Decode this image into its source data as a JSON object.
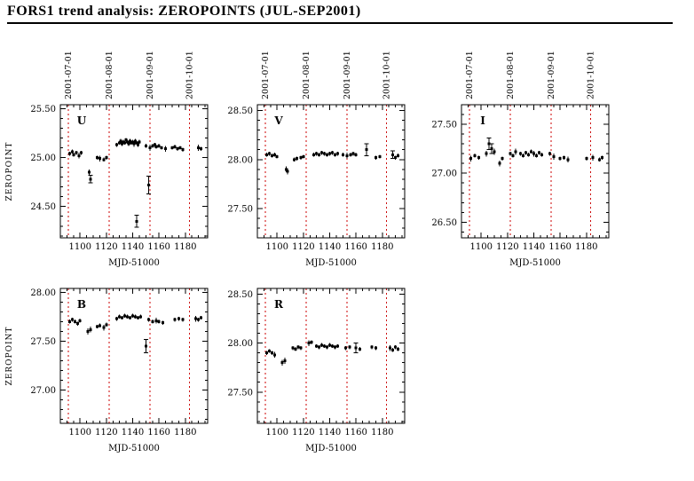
{
  "chart_data": {
    "type": "scatter",
    "title": "FORS1 trend analysis: ZEROPOINTS (JUL-SEP2001)",
    "xlabel": "MJD-51000",
    "ylabel": "ZEROPOINT",
    "xlim": [
      1085,
      1197
    ],
    "x_major_ticks": [
      1100,
      1120,
      1140,
      1160,
      1180
    ],
    "annotation_color": "#cc0000",
    "marker_color": "#000000",
    "vlines": {
      "x": [
        1091,
        1122,
        1153,
        1183
      ],
      "labels": [
        "2001-07-01",
        "2001-08-01",
        "2001-09-01",
        "2001-10-01"
      ],
      "style": "dashed",
      "color": "#cc0000"
    },
    "panels": [
      {
        "filter": "U",
        "row": 0,
        "ylim": [
          24.18,
          25.54
        ],
        "yticks": [
          24.5,
          25.0,
          25.5
        ],
        "points": [
          [
            1092,
            25.04,
            0.02
          ],
          [
            1094,
            25.06,
            0.02
          ],
          [
            1095,
            25.03,
            0.02
          ],
          [
            1097,
            25.05,
            0.02
          ],
          [
            1099,
            25.02,
            0.03
          ],
          [
            1101,
            25.05,
            0.02
          ],
          [
            1107,
            24.85,
            0.03
          ],
          [
            1108,
            24.78,
            0.04
          ],
          [
            1113,
            25.0,
            0.02
          ],
          [
            1115,
            24.99,
            0.03
          ],
          [
            1118,
            24.98,
            0.02
          ],
          [
            1120,
            25.0,
            0.02
          ],
          [
            1128,
            25.13,
            0.02
          ],
          [
            1130,
            25.15,
            0.02
          ],
          [
            1131,
            25.17,
            0.02
          ],
          [
            1132,
            25.14,
            0.02
          ],
          [
            1133,
            25.16,
            0.02
          ],
          [
            1134,
            25.15,
            0.02
          ],
          [
            1135,
            25.18,
            0.02
          ],
          [
            1136,
            25.16,
            0.02
          ],
          [
            1137,
            25.14,
            0.02
          ],
          [
            1138,
            25.17,
            0.02
          ],
          [
            1139,
            25.15,
            0.02
          ],
          [
            1140,
            25.16,
            0.02
          ],
          [
            1141,
            25.14,
            0.03
          ],
          [
            1142,
            25.17,
            0.02
          ],
          [
            1143,
            25.15,
            0.02
          ],
          [
            1144,
            25.13,
            0.02
          ],
          [
            1145,
            25.16,
            0.02
          ],
          [
            1143,
            24.35,
            0.06
          ],
          [
            1152,
            24.72,
            0.09
          ],
          [
            1150,
            25.12,
            0.02
          ],
          [
            1153,
            25.1,
            0.03
          ],
          [
            1155,
            25.12,
            0.02
          ],
          [
            1157,
            25.13,
            0.02
          ],
          [
            1158,
            25.11,
            0.02
          ],
          [
            1160,
            25.12,
            0.02
          ],
          [
            1162,
            25.1,
            0.02
          ],
          [
            1165,
            25.09,
            0.03
          ],
          [
            1170,
            25.1,
            0.02
          ],
          [
            1172,
            25.11,
            0.02
          ],
          [
            1174,
            25.09,
            0.02
          ],
          [
            1176,
            25.1,
            0.02
          ],
          [
            1178,
            25.08,
            0.02
          ],
          [
            1190,
            25.1,
            0.03
          ],
          [
            1192,
            25.09,
            0.02
          ]
        ]
      },
      {
        "filter": "V",
        "row": 0,
        "ylim": [
          27.2,
          28.56
        ],
        "yticks": [
          27.5,
          28.0,
          28.5
        ],
        "points": [
          [
            1092,
            28.05,
            0.02
          ],
          [
            1094,
            28.06,
            0.02
          ],
          [
            1096,
            28.04,
            0.02
          ],
          [
            1098,
            28.05,
            0.02
          ],
          [
            1100,
            28.03,
            0.02
          ],
          [
            1107,
            27.9,
            0.03
          ],
          [
            1108,
            27.88,
            0.03
          ],
          [
            1113,
            28.0,
            0.02
          ],
          [
            1115,
            28.01,
            0.02
          ],
          [
            1118,
            28.02,
            0.02
          ],
          [
            1120,
            28.03,
            0.02
          ],
          [
            1128,
            28.05,
            0.02
          ],
          [
            1130,
            28.06,
            0.02
          ],
          [
            1132,
            28.05,
            0.02
          ],
          [
            1134,
            28.07,
            0.02
          ],
          [
            1136,
            28.06,
            0.02
          ],
          [
            1138,
            28.05,
            0.02
          ],
          [
            1140,
            28.06,
            0.02
          ],
          [
            1142,
            28.07,
            0.02
          ],
          [
            1144,
            28.05,
            0.02
          ],
          [
            1146,
            28.06,
            0.02
          ],
          [
            1150,
            28.05,
            0.02
          ],
          [
            1153,
            28.04,
            0.03
          ],
          [
            1156,
            28.05,
            0.02
          ],
          [
            1158,
            28.06,
            0.02
          ],
          [
            1160,
            28.05,
            0.02
          ],
          [
            1168,
            28.1,
            0.06
          ],
          [
            1175,
            28.02,
            0.02
          ],
          [
            1178,
            28.03,
            0.02
          ],
          [
            1188,
            28.05,
            0.04
          ],
          [
            1190,
            28.02,
            0.02
          ],
          [
            1192,
            28.04,
            0.02
          ]
        ]
      },
      {
        "filter": "I",
        "row": 0,
        "ylim": [
          26.34,
          27.7
        ],
        "yticks": [
          26.5,
          27.0,
          27.5
        ],
        "points": [
          [
            1092,
            27.15,
            0.03
          ],
          [
            1095,
            27.18,
            0.02
          ],
          [
            1098,
            27.16,
            0.02
          ],
          [
            1104,
            27.2,
            0.03
          ],
          [
            1106,
            27.3,
            0.06
          ],
          [
            1108,
            27.25,
            0.05
          ],
          [
            1110,
            27.22,
            0.03
          ],
          [
            1114,
            27.1,
            0.03
          ],
          [
            1116,
            27.15,
            0.02
          ],
          [
            1122,
            27.2,
            0.02
          ],
          [
            1124,
            27.18,
            0.02
          ],
          [
            1126,
            27.22,
            0.03
          ],
          [
            1130,
            27.2,
            0.02
          ],
          [
            1132,
            27.18,
            0.02
          ],
          [
            1134,
            27.21,
            0.02
          ],
          [
            1136,
            27.19,
            0.02
          ],
          [
            1138,
            27.22,
            0.02
          ],
          [
            1140,
            27.2,
            0.03
          ],
          [
            1142,
            27.18,
            0.02
          ],
          [
            1144,
            27.21,
            0.02
          ],
          [
            1146,
            27.19,
            0.02
          ],
          [
            1152,
            27.2,
            0.02
          ],
          [
            1155,
            27.17,
            0.03
          ],
          [
            1160,
            27.15,
            0.02
          ],
          [
            1163,
            27.16,
            0.02
          ],
          [
            1166,
            27.14,
            0.03
          ],
          [
            1180,
            27.15,
            0.02
          ],
          [
            1185,
            27.16,
            0.03
          ],
          [
            1190,
            27.14,
            0.02
          ],
          [
            1192,
            27.16,
            0.02
          ]
        ]
      },
      {
        "filter": "B",
        "row": 1,
        "ylim": [
          26.66,
          28.04
        ],
        "yticks": [
          27.0,
          27.5,
          28.0
        ],
        "points": [
          [
            1092,
            27.7,
            0.02
          ],
          [
            1094,
            27.72,
            0.02
          ],
          [
            1096,
            27.7,
            0.02
          ],
          [
            1098,
            27.68,
            0.02
          ],
          [
            1100,
            27.71,
            0.02
          ],
          [
            1106,
            27.6,
            0.03
          ],
          [
            1108,
            27.62,
            0.03
          ],
          [
            1113,
            27.65,
            0.02
          ],
          [
            1115,
            27.66,
            0.02
          ],
          [
            1118,
            27.64,
            0.03
          ],
          [
            1120,
            27.67,
            0.02
          ],
          [
            1128,
            27.73,
            0.02
          ],
          [
            1130,
            27.75,
            0.02
          ],
          [
            1132,
            27.74,
            0.02
          ],
          [
            1134,
            27.76,
            0.02
          ],
          [
            1136,
            27.75,
            0.02
          ],
          [
            1138,
            27.74,
            0.02
          ],
          [
            1140,
            27.76,
            0.02
          ],
          [
            1142,
            27.75,
            0.02
          ],
          [
            1144,
            27.74,
            0.02
          ],
          [
            1146,
            27.75,
            0.02
          ],
          [
            1150,
            27.45,
            0.07
          ],
          [
            1152,
            27.72,
            0.02
          ],
          [
            1155,
            27.7,
            0.02
          ],
          [
            1158,
            27.71,
            0.03
          ],
          [
            1160,
            27.7,
            0.02
          ],
          [
            1163,
            27.69,
            0.02
          ],
          [
            1172,
            27.72,
            0.02
          ],
          [
            1175,
            27.73,
            0.02
          ],
          [
            1178,
            27.72,
            0.02
          ],
          [
            1188,
            27.73,
            0.03
          ],
          [
            1190,
            27.72,
            0.02
          ],
          [
            1192,
            27.74,
            0.02
          ]
        ]
      },
      {
        "filter": "R",
        "row": 1,
        "ylim": [
          27.18,
          28.56
        ],
        "yticks": [
          27.5,
          28.0,
          28.5
        ],
        "points": [
          [
            1092,
            27.9,
            0.02
          ],
          [
            1094,
            27.92,
            0.02
          ],
          [
            1096,
            27.9,
            0.02
          ],
          [
            1098,
            27.88,
            0.03
          ],
          [
            1104,
            27.8,
            0.03
          ],
          [
            1106,
            27.82,
            0.03
          ],
          [
            1112,
            27.95,
            0.02
          ],
          [
            1114,
            27.94,
            0.02
          ],
          [
            1116,
            27.96,
            0.02
          ],
          [
            1118,
            27.95,
            0.02
          ],
          [
            1124,
            28.0,
            0.03
          ],
          [
            1126,
            28.01,
            0.02
          ],
          [
            1130,
            27.97,
            0.02
          ],
          [
            1132,
            27.96,
            0.02
          ],
          [
            1134,
            27.98,
            0.02
          ],
          [
            1136,
            27.97,
            0.02
          ],
          [
            1138,
            27.96,
            0.02
          ],
          [
            1140,
            27.98,
            0.02
          ],
          [
            1142,
            27.97,
            0.02
          ],
          [
            1144,
            27.96,
            0.02
          ],
          [
            1146,
            27.97,
            0.02
          ],
          [
            1152,
            27.95,
            0.02
          ],
          [
            1155,
            27.96,
            0.02
          ],
          [
            1160,
            27.95,
            0.05
          ],
          [
            1163,
            27.94,
            0.02
          ],
          [
            1172,
            27.96,
            0.02
          ],
          [
            1175,
            27.95,
            0.02
          ],
          [
            1186,
            27.95,
            0.03
          ],
          [
            1188,
            27.93,
            0.02
          ],
          [
            1190,
            27.96,
            0.02
          ],
          [
            1192,
            27.94,
            0.02
          ]
        ]
      }
    ]
  }
}
